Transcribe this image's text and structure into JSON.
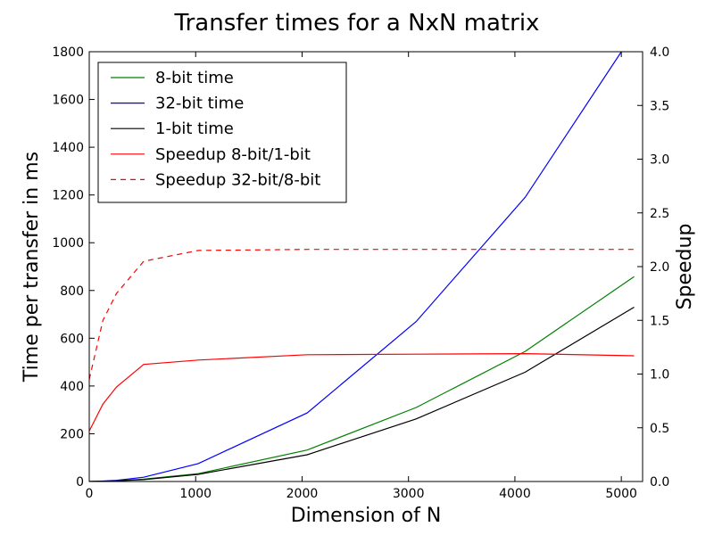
{
  "chart_data": {
    "type": "line",
    "title": "Transfer times for a NxN matrix",
    "xlabel": "Dimension of N",
    "ylabel": "Time per transfer in ms",
    "y2label": "Speedup",
    "xlim": [
      0,
      5200
    ],
    "ylim": [
      0,
      1800
    ],
    "y2lim": [
      0,
      4.0
    ],
    "xticks": [
      "0",
      "1000",
      "2000",
      "3000",
      "4000",
      "5000"
    ],
    "yticks": [
      "0",
      "200",
      "400",
      "600",
      "800",
      "1000",
      "1200",
      "1400",
      "1600",
      "1800"
    ],
    "y2ticks": [
      "0.0",
      "0.5",
      "1.0",
      "1.5",
      "2.0",
      "2.5",
      "3.0",
      "3.5",
      "4.0"
    ],
    "legend_position": "top-left",
    "series": [
      {
        "name": "8-bit time",
        "axis": "left",
        "color": "#008000",
        "style": "solid",
        "x": [
          0,
          128,
          256,
          512,
          1024,
          2048,
          3072,
          4096,
          5120
        ],
        "y": [
          0,
          1,
          3,
          10,
          33,
          132,
          310,
          545,
          858
        ]
      },
      {
        "name": "32-bit time",
        "axis": "left",
        "color": "#0000ff",
        "style": "solid",
        "x": [
          0,
          128,
          256,
          512,
          1024,
          2048,
          3072,
          4096,
          5000
        ],
        "y": [
          0,
          2,
          5,
          18,
          75,
          287,
          670,
          1190,
          1800
        ]
      },
      {
        "name": "1-bit time",
        "axis": "left",
        "color": "#000000",
        "style": "solid",
        "x": [
          0,
          128,
          256,
          512,
          1024,
          2048,
          3072,
          4096,
          5120
        ],
        "y": [
          0,
          1,
          3,
          8,
          30,
          112,
          262,
          458,
          730
        ]
      },
      {
        "name": "Speedup 8-bit/1-bit",
        "axis": "right",
        "color": "#ff0000",
        "style": "solid",
        "x": [
          0,
          128,
          256,
          512,
          1024,
          2048,
          3072,
          4096,
          5120
        ],
        "y": [
          0.47,
          0.72,
          0.88,
          1.09,
          1.13,
          1.18,
          1.185,
          1.19,
          1.17
        ]
      },
      {
        "name": "Speedup 32-bit/8-bit",
        "axis": "right",
        "color": "#ff0000",
        "style": "dashed",
        "x": [
          0,
          128,
          256,
          512,
          1024,
          2048,
          3072,
          4096,
          5120
        ],
        "y": [
          0.95,
          1.5,
          1.75,
          2.05,
          2.15,
          2.16,
          2.16,
          2.16,
          2.16
        ]
      }
    ]
  }
}
